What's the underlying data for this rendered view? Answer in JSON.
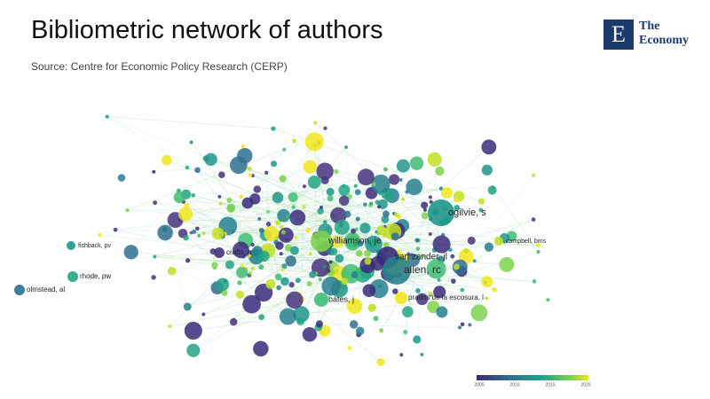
{
  "header": {
    "title": "Bibliometric network of authors",
    "source": "Source: Centre for Economic Policy Research (CERP)"
  },
  "logo": {
    "mark": "E",
    "line1": "The",
    "line2": "Economy"
  },
  "network": {
    "nodes": [
      {
        "label": "ogilvie, s"
      },
      {
        "label": "williamson, je"
      },
      {
        "label": "van zander, jl"
      },
      {
        "label": "allen, rc"
      },
      {
        "label": "bates, j"
      },
      {
        "label": "prados de la escosura, l"
      },
      {
        "label": "olmstead, al"
      },
      {
        "label": "rhode, pw"
      },
      {
        "label": "campbell, bms"
      },
      {
        "label": "crafts, n"
      },
      {
        "label": "fishback, pv"
      }
    ]
  },
  "legend": {
    "ticks": [
      "2005",
      "2010",
      "2015",
      "2020"
    ]
  }
}
